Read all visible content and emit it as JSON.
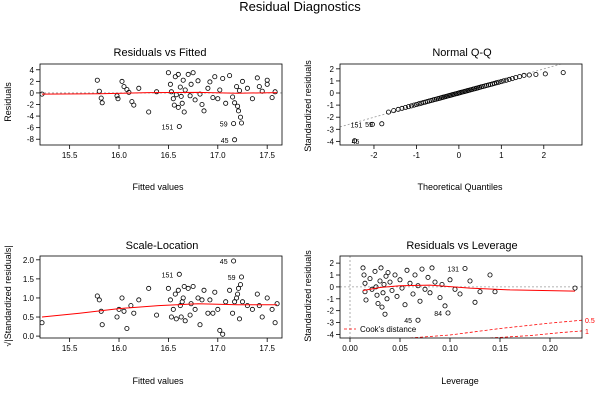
{
  "page_title": "Residual Diagnostics",
  "colors": {
    "point": "#000000",
    "smooth": "#ff0000",
    "guide": "#999999",
    "cook": "#ff0000"
  },
  "chart_data": [
    {
      "type": "scatter",
      "title": "Residuals vs Fitted",
      "xlabel": "Fitted values",
      "ylabel": "Residuals",
      "xlim": [
        15.2,
        17.65
      ],
      "ylim": [
        -9,
        5
      ],
      "xticks": [
        "15.5",
        "16.0",
        "16.5",
        "17.0",
        "17.5"
      ],
      "yticks": [
        "4",
        "2",
        "0",
        "-2",
        "-4",
        "-6",
        "-8"
      ],
      "points": [
        [
          15.22,
          -0.2
        ],
        [
          15.78,
          2.2
        ],
        [
          15.8,
          0.3
        ],
        [
          15.82,
          -0.9
        ],
        [
          15.83,
          -1.7
        ],
        [
          15.98,
          -0.5
        ],
        [
          15.99,
          -1.0
        ],
        [
          16.03,
          2.0
        ],
        [
          16.05,
          1.1
        ],
        [
          16.08,
          0.6
        ],
        [
          16.1,
          0.1
        ],
        [
          16.13,
          -1.5
        ],
        [
          16.15,
          -2.1
        ],
        [
          16.2,
          0.8
        ],
        [
          16.3,
          -3.3
        ],
        [
          16.38,
          0.2
        ],
        [
          16.5,
          3.5
        ],
        [
          16.52,
          1.5
        ],
        [
          16.53,
          0.2
        ],
        [
          16.55,
          -1.0
        ],
        [
          16.56,
          -2.1
        ],
        [
          16.57,
          2.8
        ],
        [
          16.58,
          -0.3
        ],
        [
          16.6,
          3.2
        ],
        [
          16.6,
          -2.5
        ],
        [
          16.62,
          1.0
        ],
        [
          16.63,
          -0.6
        ],
        [
          16.64,
          -1.8
        ],
        [
          16.65,
          2.2
        ],
        [
          16.66,
          -3.3
        ],
        [
          16.67,
          0.5
        ],
        [
          16.61,
          -5.8
        ],
        [
          16.7,
          3.2
        ],
        [
          16.72,
          -0.5
        ],
        [
          16.73,
          1.5
        ],
        [
          16.75,
          3.5
        ],
        [
          16.77,
          -1.2
        ],
        [
          16.8,
          2.1
        ],
        [
          16.82,
          -0.2
        ],
        [
          16.84,
          -2.0
        ],
        [
          16.86,
          -3.1
        ],
        [
          16.9,
          0.8
        ],
        [
          16.92,
          1.9
        ],
        [
          16.95,
          -0.8
        ],
        [
          16.97,
          2.8
        ],
        [
          17.0,
          -1.0
        ],
        [
          17.02,
          0.5
        ],
        [
          17.05,
          2.5
        ],
        [
          17.08,
          -1.8
        ],
        [
          17.12,
          3.0
        ],
        [
          17.15,
          -0.7
        ],
        [
          17.17,
          -1.7
        ],
        [
          17.19,
          1.1
        ],
        [
          17.2,
          -2.3
        ],
        [
          17.21,
          -3.1
        ],
        [
          17.22,
          0.4
        ],
        [
          17.23,
          -4.2
        ],
        [
          17.24,
          -5.2
        ],
        [
          17.25,
          2.0
        ],
        [
          17.3,
          0.8
        ],
        [
          17.35,
          -1.0
        ],
        [
          17.4,
          2.6
        ],
        [
          17.42,
          1.1
        ],
        [
          17.45,
          0.3
        ],
        [
          17.5,
          2.2
        ],
        [
          17.55,
          -0.8
        ],
        [
          17.58,
          0.2
        ],
        [
          17.16,
          -5.3
        ],
        [
          17.17,
          -8.1
        ],
        [
          17.5,
          1.5
        ]
      ],
      "labels": [
        {
          "x": 16.61,
          "y": -5.8,
          "text": "151"
        },
        {
          "x": 17.16,
          "y": -5.3,
          "text": "59"
        },
        {
          "x": 17.17,
          "y": -8.1,
          "text": "45"
        }
      ],
      "smooth": [
        [
          15.22,
          -0.2
        ],
        [
          15.8,
          -0.15
        ],
        [
          16.3,
          0.05
        ],
        [
          16.8,
          0.1
        ],
        [
          17.2,
          -0.05
        ],
        [
          17.6,
          0.05
        ]
      ],
      "guide_h": 0
    },
    {
      "type": "scatter",
      "title": "Normal Q-Q",
      "xlabel": "Theoretical Quantiles",
      "ylabel": "Standardized residuals",
      "xlim": [
        -2.8,
        2.9
      ],
      "ylim": [
        -4.3,
        2.4
      ],
      "xticks": [
        "-2",
        "-1",
        "0",
        "1",
        "2"
      ],
      "yticks": [
        "2",
        "1",
        "0",
        "-1",
        "-2",
        "-3",
        "-4"
      ],
      "labels": [
        {
          "x": -2.25,
          "y": -2.6,
          "text": "151"
        },
        {
          "x": -2.0,
          "y": -2.55,
          "text": "59"
        },
        {
          "x": -2.62,
          "y": -3.95,
          "text": "45"
        }
      ],
      "guide_line": [
        [
          -2.8,
          -2.8
        ],
        [
          2.9,
          2.9
        ]
      ]
    },
    {
      "type": "scatter",
      "title": "Scale-Location",
      "xlabel": "Fitted values",
      "ylabel": "√|Standardized residuals|",
      "xlim": [
        15.2,
        17.65
      ],
      "ylim": [
        -0.05,
        2.1
      ],
      "xticks": [
        "15.5",
        "16.0",
        "16.5",
        "17.0",
        "17.5"
      ],
      "yticks": [
        "2.0",
        "1.5",
        "1.0",
        "0.5",
        "0.0"
      ],
      "points": [
        [
          15.22,
          0.35
        ],
        [
          15.78,
          1.05
        ],
        [
          15.8,
          0.95
        ],
        [
          15.82,
          0.65
        ],
        [
          15.83,
          0.3
        ],
        [
          15.98,
          0.5
        ],
        [
          16.0,
          0.7
        ],
        [
          16.03,
          1.0
        ],
        [
          16.05,
          0.65
        ],
        [
          16.08,
          0.2
        ],
        [
          16.12,
          0.8
        ],
        [
          16.15,
          0.6
        ],
        [
          16.2,
          0.95
        ],
        [
          16.3,
          1.25
        ],
        [
          16.38,
          0.55
        ],
        [
          16.5,
          1.25
        ],
        [
          16.52,
          0.95
        ],
        [
          16.53,
          0.5
        ],
        [
          16.55,
          0.7
        ],
        [
          16.57,
          1.1
        ],
        [
          16.58,
          0.45
        ],
        [
          16.6,
          1.2
        ],
        [
          16.61,
          1.62
        ],
        [
          16.62,
          0.8
        ],
        [
          16.63,
          0.5
        ],
        [
          16.64,
          0.9
        ],
        [
          16.65,
          1.0
        ],
        [
          16.66,
          1.3
        ],
        [
          16.67,
          0.4
        ],
        [
          16.7,
          1.25
        ],
        [
          16.72,
          0.55
        ],
        [
          16.73,
          0.85
        ],
        [
          16.75,
          1.3
        ],
        [
          16.77,
          0.7
        ],
        [
          16.8,
          1.0
        ],
        [
          16.82,
          0.3
        ],
        [
          16.84,
          0.95
        ],
        [
          16.86,
          1.2
        ],
        [
          16.9,
          0.6
        ],
        [
          16.92,
          0.95
        ],
        [
          16.95,
          0.6
        ],
        [
          16.97,
          1.15
        ],
        [
          17.0,
          0.7
        ],
        [
          17.02,
          0.15
        ],
        [
          17.05,
          0.05
        ],
        [
          17.08,
          0.9
        ],
        [
          17.12,
          1.2
        ],
        [
          17.15,
          0.6
        ],
        [
          17.17,
          0.9
        ],
        [
          17.19,
          1.0
        ],
        [
          17.2,
          1.1
        ],
        [
          17.21,
          1.25
        ],
        [
          17.22,
          0.45
        ],
        [
          17.23,
          1.35
        ],
        [
          17.24,
          1.55
        ],
        [
          17.16,
          1.97
        ],
        [
          17.25,
          0.9
        ],
        [
          17.3,
          0.8
        ],
        [
          17.35,
          0.7
        ],
        [
          17.4,
          1.1
        ],
        [
          17.42,
          0.8
        ],
        [
          17.45,
          0.5
        ],
        [
          17.5,
          1.0
        ],
        [
          17.55,
          0.7
        ],
        [
          17.58,
          0.35
        ],
        [
          17.6,
          0.85
        ]
      ],
      "labels": [
        {
          "x": 16.61,
          "y": 1.62,
          "text": "151"
        },
        {
          "x": 17.16,
          "y": 1.97,
          "text": "45"
        },
        {
          "x": 17.24,
          "y": 1.55,
          "text": "59"
        }
      ],
      "smooth": [
        [
          15.22,
          0.5
        ],
        [
          15.6,
          0.6
        ],
        [
          16.0,
          0.72
        ],
        [
          16.4,
          0.8
        ],
        [
          16.8,
          0.85
        ],
        [
          17.2,
          0.82
        ],
        [
          17.6,
          0.82
        ]
      ]
    },
    {
      "type": "scatter",
      "title": "Residuals vs Leverage",
      "xlabel": "Leverage",
      "ylabel": "Standardized residuals",
      "xlim": [
        -0.01,
        0.232
      ],
      "ylim": [
        -4.3,
        2.6
      ],
      "xticks": [
        "0.00",
        "0.05",
        "0.10",
        "0.15",
        "0.20"
      ],
      "yticks": [
        "2",
        "1",
        "0",
        "-1",
        "-2",
        "-3",
        "-4"
      ],
      "points": [
        [
          0.013,
          1.6
        ],
        [
          0.014,
          1.0
        ],
        [
          0.015,
          0.3
        ],
        [
          0.015,
          -0.4
        ],
        [
          0.016,
          -1.1
        ],
        [
          0.02,
          0.7
        ],
        [
          0.022,
          -0.2
        ],
        [
          0.025,
          1.3
        ],
        [
          0.026,
          0.0
        ],
        [
          0.027,
          -0.7
        ],
        [
          0.028,
          -1.4
        ],
        [
          0.03,
          0.5
        ],
        [
          0.031,
          1.6
        ],
        [
          0.032,
          -1.7
        ],
        [
          0.033,
          -0.5
        ],
        [
          0.034,
          0.2
        ],
        [
          0.035,
          -2.3
        ],
        [
          0.036,
          0.9
        ],
        [
          0.037,
          -1.0
        ],
        [
          0.038,
          1.2
        ],
        [
          0.04,
          0.4
        ],
        [
          0.042,
          -0.3
        ],
        [
          0.045,
          1.0
        ],
        [
          0.047,
          -0.8
        ],
        [
          0.05,
          0.6
        ],
        [
          0.052,
          -0.1
        ],
        [
          0.055,
          -1.5
        ],
        [
          0.057,
          1.4
        ],
        [
          0.06,
          0.3
        ],
        [
          0.063,
          -0.6
        ],
        [
          0.065,
          1.0
        ],
        [
          0.068,
          0.1
        ],
        [
          0.07,
          -1.2
        ],
        [
          0.072,
          1.5
        ],
        [
          0.075,
          -0.2
        ],
        [
          0.078,
          0.8
        ],
        [
          0.08,
          -0.5
        ],
        [
          0.082,
          1.6
        ],
        [
          0.085,
          0.4
        ],
        [
          0.09,
          -0.9
        ],
        [
          0.092,
          0.2
        ],
        [
          0.095,
          -1.6
        ],
        [
          0.1,
          0.6
        ],
        [
          0.105,
          -0.2
        ],
        [
          0.11,
          -0.6
        ],
        [
          0.115,
          1.55
        ],
        [
          0.12,
          0.5
        ],
        [
          0.125,
          -1.3
        ],
        [
          0.13,
          -0.4
        ],
        [
          0.14,
          1.0
        ],
        [
          0.145,
          -0.4
        ],
        [
          0.225,
          -0.1
        ],
        [
          0.068,
          -2.8
        ],
        [
          0.098,
          -2.2
        ]
      ],
      "labels": [
        {
          "x": 0.115,
          "y": 1.55,
          "text": "131"
        },
        {
          "x": 0.098,
          "y": -2.2,
          "text": "84"
        },
        {
          "x": 0.068,
          "y": -2.8,
          "text": "45"
        }
      ],
      "smooth": [
        [
          0.013,
          -0.3
        ],
        [
          0.03,
          -0.05
        ],
        [
          0.05,
          0.1
        ],
        [
          0.08,
          0.15
        ],
        [
          0.12,
          -0.1
        ],
        [
          0.16,
          -0.25
        ],
        [
          0.225,
          -0.35
        ]
      ],
      "guide_h": 0,
      "guide_v": 0,
      "cook_lines": [
        {
          "level": "0.5",
          "pts": [
            [
              0.06,
              -4.3
            ],
            [
              0.1,
              -4.05
            ],
            [
              0.15,
              -3.5
            ],
            [
              0.2,
              -3.05
            ],
            [
              0.232,
              -2.8
            ]
          ]
        },
        {
          "level": "1",
          "pts": [
            [
              0.14,
              -4.3
            ],
            [
              0.18,
              -4.1
            ],
            [
              0.21,
              -3.85
            ],
            [
              0.232,
              -3.7
            ]
          ]
        }
      ],
      "legend": "Cook's distance",
      "legend_position": "bottom-left"
    }
  ]
}
